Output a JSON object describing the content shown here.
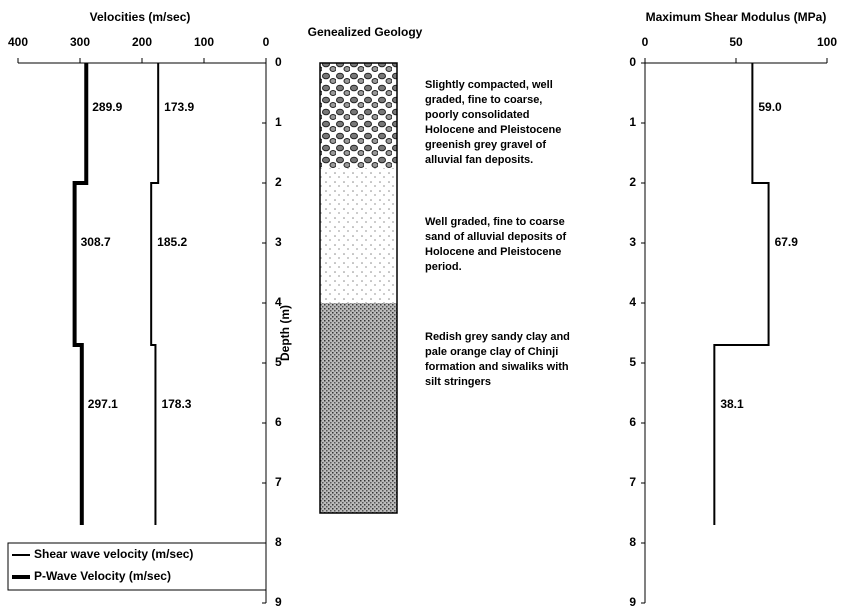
{
  "chart_data": [
    {
      "type": "line",
      "title": "Velocities (m/sec)",
      "y_label": "Depth (m)",
      "xlim": [
        400,
        0
      ],
      "xticks": [
        400,
        300,
        200,
        100,
        0
      ],
      "ylim": [
        0,
        9
      ],
      "yticks": [
        0,
        1,
        2,
        3,
        4,
        5,
        6,
        7,
        8,
        9
      ],
      "y_inverted": true,
      "y": [
        0,
        2,
        2,
        4.7,
        4.7,
        7.7
      ],
      "legend": "lower-left",
      "series": [
        {
          "name": "Shear wave velocity (m/sec)",
          "color": "#000000",
          "width": 2,
          "values": [
            173.9,
            173.9,
            185.2,
            185.2,
            178.3,
            178.3
          ]
        },
        {
          "name": "P-Wave Velocity (m/sec)",
          "color": "#000000",
          "width": 4,
          "values": [
            289.9,
            289.9,
            308.7,
            308.7,
            297.1,
            297.1
          ]
        }
      ]
    },
    {
      "type": "line",
      "title": "Maximum Shear Modulus (MPa)",
      "xlim": [
        0,
        100
      ],
      "xticks": [
        0,
        50,
        100
      ],
      "ylim": [
        0,
        9
      ],
      "yticks": [
        0,
        1,
        2,
        3,
        4,
        5,
        6,
        7,
        8,
        9
      ],
      "y_inverted": true,
      "y": [
        0,
        2,
        2,
        4.7,
        4.7,
        7.7
      ],
      "series": [
        {
          "color": "#000000",
          "width": 2,
          "values": [
            59,
            59,
            67.9,
            67.9,
            38.1,
            38.1
          ],
          "value_labels": [
            "59.0",
            null,
            "67.9",
            null,
            "38.1",
            null
          ]
        }
      ]
    }
  ],
  "geology": {
    "title": "Genealized Geology",
    "layers": [
      {
        "top": 0,
        "bottom": 1.75,
        "lines": [
          "Slightly compacted, well",
          "graded, fine to coarse,",
          "poorly consolidated",
          "Holocene and Pleistocene",
          "greenish grey gravel of",
          "alluvial fan deposits."
        ]
      },
      {
        "top": 1.75,
        "bottom": 4,
        "lines": [
          "Well graded, fine to coarse",
          "sand of alluvial deposits of",
          "Holocene and Pleistocene",
          "period."
        ]
      },
      {
        "top": 4,
        "bottom": 7.5,
        "lines": [
          "Redish grey sandy clay and",
          "pale orange clay of Chinji",
          "formation and siwaliks with",
          "silt stringers"
        ]
      }
    ]
  }
}
